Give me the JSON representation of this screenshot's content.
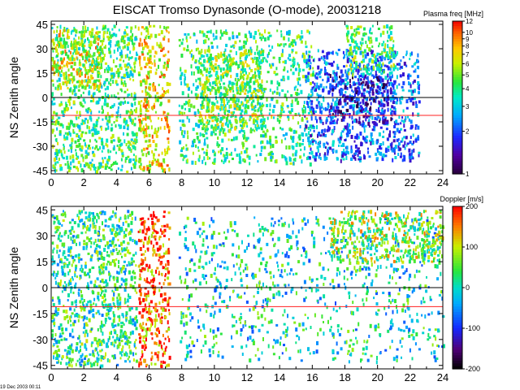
{
  "title": "EISCAT Tromso Dynasonde (O-mode),  20031218",
  "footer": "19 Dec 2003 00:11",
  "chart_data": [
    {
      "type": "heatmap",
      "title": "EISCAT Tromso Dynasonde (O-mode),  20031218",
      "ylabel": "NS Zenith angle",
      "xlabel": "",
      "xlim": [
        0,
        24
      ],
      "ylim": [
        -47,
        47
      ],
      "xticks": [
        "0",
        "2",
        "4",
        "6",
        "8",
        "10",
        "12",
        "14",
        "16",
        "18",
        "20",
        "22",
        "24"
      ],
      "yticks": [
        "45",
        "30",
        "15",
        "0",
        "-15",
        "-30",
        "-45"
      ],
      "hlines": [
        0,
        -11
      ],
      "colorbar": {
        "label": "Plasma freq [MHz]",
        "scale": "log",
        "range": [
          1,
          12
        ],
        "ticks": [
          "12",
          "10",
          "9",
          "8",
          "7",
          "6",
          "5",
          "4",
          "3",
          "2",
          "1"
        ]
      },
      "regions": [
        {
          "x": [
            0,
            5.2
          ],
          "y": [
            -45,
            45
          ],
          "value": 4.2
        },
        {
          "x": [
            0,
            3
          ],
          "y": [
            5,
            42
          ],
          "value": 6.5
        },
        {
          "x": [
            5.3,
            7.2
          ],
          "y": [
            -45,
            45
          ],
          "value": 6.8
        },
        {
          "x": [
            7.8,
            16
          ],
          "y": [
            -40,
            42
          ],
          "value": 4.0
        },
        {
          "x": [
            9,
            13
          ],
          "y": [
            -20,
            30
          ],
          "value": 5.0
        },
        {
          "x": [
            15.5,
            22.5
          ],
          "y": [
            -38,
            30
          ],
          "value": 2.2
        },
        {
          "x": [
            17,
            21
          ],
          "y": [
            -15,
            15
          ],
          "value": 1.5
        },
        {
          "x": [
            18,
            21
          ],
          "y": [
            15,
            45
          ],
          "value": 4.5
        }
      ]
    },
    {
      "type": "heatmap",
      "title": "",
      "ylabel": "NS Zenith angle",
      "xlabel": "",
      "xlim": [
        0,
        24
      ],
      "ylim": [
        -47,
        47
      ],
      "xticks": [
        "0",
        "2",
        "4",
        "6",
        "8",
        "10",
        "12",
        "14",
        "16",
        "18",
        "20",
        "22",
        "24"
      ],
      "yticks": [
        "45",
        "30",
        "15",
        "0",
        "-15",
        "-30",
        "-45"
      ],
      "hlines": [
        0,
        -11
      ],
      "colorbar": {
        "label": "Doppler [m/s]",
        "scale": "linear",
        "range": [
          -200,
          200
        ],
        "ticks": [
          "200",
          "100",
          "0",
          "-100",
          "-200"
        ]
      },
      "regions": [
        {
          "x": [
            0,
            5.2
          ],
          "y": [
            -45,
            45
          ],
          "value": 20
        },
        {
          "x": [
            5.3,
            7.2
          ],
          "y": [
            -45,
            45
          ],
          "value": 160
        },
        {
          "x": [
            7.8,
            24
          ],
          "y": [
            -42,
            42
          ],
          "value": 0
        },
        {
          "x": [
            17,
            24
          ],
          "y": [
            15,
            45
          ],
          "value": 70
        }
      ]
    }
  ],
  "colors": {
    "zero_line": "#000000",
    "red_line": "#ff2020",
    "background": "#ffffff"
  }
}
